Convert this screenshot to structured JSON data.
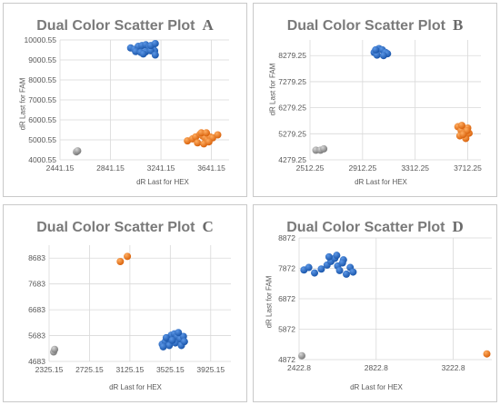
{
  "charts": [
    {
      "title": "Dual Color Scatter Plot",
      "letter": "A",
      "xlabel": "dR Last for HEX",
      "ylabel": "dR Last for FAM",
      "x_ticks": [
        "2441.15",
        "2841.15",
        "3241.15",
        "3641.15"
      ],
      "y_ticks": [
        "4000.55",
        "5000.55",
        "6000.55",
        "7000.55",
        "8000.55",
        "9000.55",
        "10000.55"
      ]
    },
    {
      "title": "Dual Color Scatter Plot",
      "letter": "B",
      "xlabel": "dR Last for HEX",
      "ylabel": "dR Last for FAM",
      "x_ticks": [
        "2512.25",
        "2912.25",
        "3312.25",
        "3712.25"
      ],
      "y_ticks": [
        "4279.25",
        "5279.25",
        "6279.25",
        "7279.25",
        "8279.25"
      ]
    },
    {
      "title": "Dual Color Scatter Plot",
      "letter": "C",
      "xlabel": "dR Last for HEX",
      "ylabel": "dR Last for FAM",
      "x_ticks": [
        "2325.15",
        "2725.15",
        "3125.15",
        "3525.15",
        "3925.15"
      ],
      "y_ticks": [
        "4683",
        "5683",
        "6683",
        "7683",
        "8683"
      ]
    },
    {
      "title": "Dual Color Scatter Plot",
      "letter": "D",
      "xlabel": "dR Last for HEX",
      "ylabel": "dR Last for FAM",
      "x_ticks": [
        "2422.8",
        "2822.8",
        "3222.8"
      ],
      "y_ticks": [
        "4872",
        "5872",
        "6872",
        "7872",
        "8872"
      ]
    }
  ],
  "colors": {
    "blue": "#1f5fb5",
    "orange": "#e8731c",
    "gray": "#8c8c8c",
    "grid": "#d9d9d9"
  },
  "chart_data": [
    {
      "type": "scatter",
      "title": "Dual Color Scatter Plot",
      "xlabel": "dR Last for HEX",
      "ylabel": "dR Last for FAM",
      "xlim": [
        2441.15,
        3781.15
      ],
      "ylim": [
        4000.55,
        10000.55
      ],
      "grid": true,
      "series": [
        {
          "color": "blue",
          "points": [
            [
              3001,
              9600
            ],
            [
              3031,
              9530
            ],
            [
              3061,
              9680
            ],
            [
              3091,
              9720
            ],
            [
              3121,
              9760
            ],
            [
              3151,
              9650
            ],
            [
              3176,
              9580
            ],
            [
              3191,
              9460
            ],
            [
              3041,
              9420
            ],
            [
              3081,
              9380
            ],
            [
              3121,
              9410
            ],
            [
              3161,
              9460
            ],
            [
              3196,
              9250
            ],
            [
              3101,
              9300
            ],
            [
              3161,
              9720
            ],
            [
              3196,
              9820
            ]
          ]
        },
        {
          "color": "orange",
          "points": [
            [
              3451,
              4950
            ],
            [
              3491,
              5050
            ],
            [
              3516,
              5150
            ],
            [
              3551,
              5280
            ],
            [
              3571,
              5200
            ],
            [
              3591,
              5100
            ],
            [
              3611,
              5000
            ],
            [
              3631,
              5150
            ],
            [
              3651,
              5100
            ],
            [
              3691,
              5250
            ],
            [
              3531,
              4850
            ],
            [
              3581,
              4800
            ],
            [
              3621,
              4900
            ],
            [
              3561,
              5350
            ],
            [
              3601,
              5350
            ]
          ]
        },
        {
          "color": "gray",
          "points": [
            [
              2571,
              4400
            ],
            [
              2581,
              4450
            ]
          ]
        }
      ]
    },
    {
      "type": "scatter",
      "title": "Dual Color Scatter Plot",
      "xlabel": "dR Last for HEX",
      "ylabel": "dR Last for FAM",
      "xlim": [
        2512.25,
        3812.25
      ],
      "ylim": [
        4279.25,
        8879.25
      ],
      "grid": true,
      "series": [
        {
          "color": "blue",
          "points": [
            [
              3000,
              8400
            ],
            [
              3037,
              8550
            ],
            [
              3062,
              8500
            ],
            [
              3087,
              8400
            ],
            [
              3102,
              8350
            ],
            [
              3022,
              8300
            ],
            [
              3072,
              8280
            ],
            [
              3012,
              8500
            ]
          ]
        },
        {
          "color": "orange",
          "points": [
            [
              3637,
              5550
            ],
            [
              3662,
              5400
            ],
            [
              3687,
              5300
            ],
            [
              3712,
              5500
            ],
            [
              3652,
              5200
            ],
            [
              3697,
              5100
            ],
            [
              3722,
              5300
            ],
            [
              3667,
              5600
            ],
            [
              3707,
              5400
            ],
            [
              3677,
              5250
            ]
          ]
        },
        {
          "color": "gray",
          "points": [
            [
              2557,
              4650
            ],
            [
              2592,
              4650
            ],
            [
              2617,
              4700
            ]
          ]
        }
      ]
    },
    {
      "type": "scatter",
      "title": "Dual Color Scatter Plot",
      "xlabel": "dR Last for HEX",
      "ylabel": "dR Last for FAM",
      "xlim": [
        2325.15,
        4125.15
      ],
      "ylim": [
        4683,
        9183
      ],
      "grid": true,
      "series": [
        {
          "color": "blue",
          "points": [
            [
              3445,
              5350
            ],
            [
              3475,
              5450
            ],
            [
              3505,
              5550
            ],
            [
              3535,
              5700
            ],
            [
              3565,
              5750
            ],
            [
              3595,
              5650
            ],
            [
              3625,
              5550
            ],
            [
              3655,
              5650
            ],
            [
              3515,
              5300
            ],
            [
              3575,
              5400
            ],
            [
              3635,
              5300
            ],
            [
              3485,
              5600
            ],
            [
              3545,
              5500
            ],
            [
              3605,
              5800
            ],
            [
              3665,
              5450
            ],
            [
              3455,
              5250
            ]
          ]
        },
        {
          "color": "orange",
          "points": [
            [
              3030,
              8550
            ],
            [
              3100,
              8750
            ]
          ]
        },
        {
          "color": "gray",
          "points": [
            [
              2370,
              5050
            ],
            [
              2380,
              5150
            ]
          ]
        }
      ]
    },
    {
      "type": "scatter",
      "title": "Dual Color Scatter Plot",
      "xlabel": "dR Last for HEX",
      "ylabel": "dR Last for FAM",
      "xlim": [
        2422.8,
        3422.8
      ],
      "ylim": [
        4872,
        8872
      ],
      "grid": true,
      "series": [
        {
          "color": "blue",
          "points": [
            [
              2448,
              7820
            ],
            [
              2473,
              7900
            ],
            [
              2503,
              7720
            ],
            [
              2538,
              7850
            ],
            [
              2568,
              7980
            ],
            [
              2588,
              8100
            ],
            [
              2608,
              8200
            ],
            [
              2623,
              7950
            ],
            [
              2633,
              7800
            ],
            [
              2653,
              8150
            ],
            [
              2668,
              7680
            ],
            [
              2688,
              7900
            ],
            [
              2703,
              7750
            ],
            [
              2578,
              8250
            ],
            [
              2618,
              8300
            ],
            [
              2648,
              8050
            ]
          ]
        },
        {
          "color": "orange",
          "points": [
            [
              3397,
              5060
            ]
          ]
        },
        {
          "color": "gray",
          "points": [
            [
              2437,
              5000
            ]
          ]
        }
      ]
    }
  ]
}
